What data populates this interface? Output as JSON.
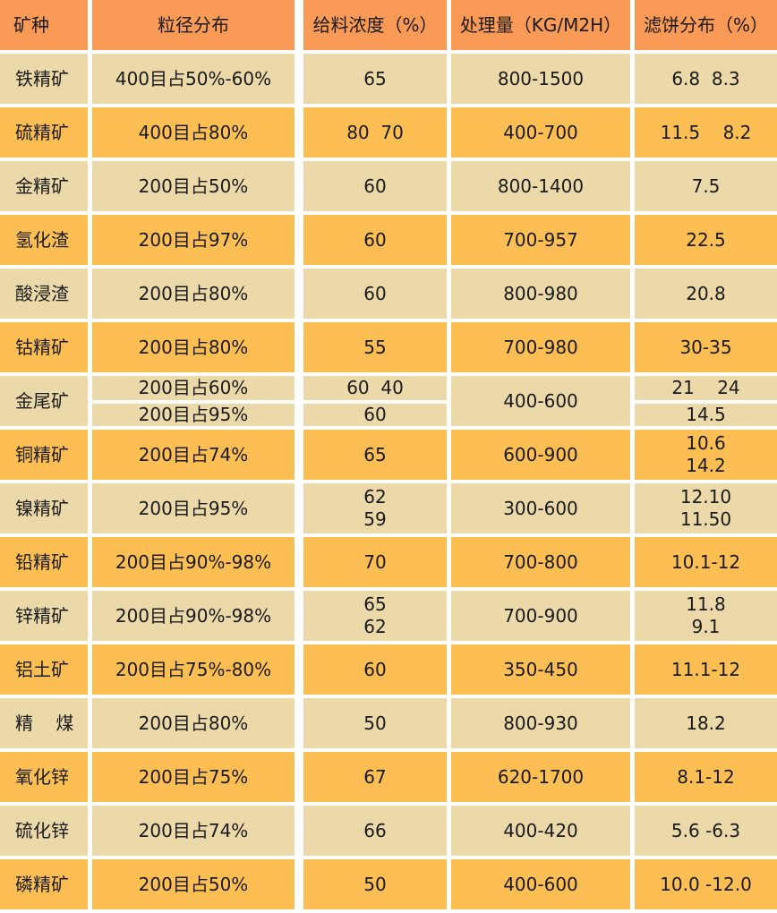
{
  "colors": {
    "header": "#f99a56",
    "row_light": "#ecd9aa",
    "row_dark": "#fdbf54"
  },
  "headers": [
    "矿种",
    "粒径分布",
    "给料浓度（%）",
    "处理量（KG/M2H）",
    "滤饼分布（%）"
  ],
  "rows": [
    {
      "mineral": "铁精矿",
      "size": "400目占50%-60%",
      "conc": "65",
      "capacity": "800-1500",
      "cake": "6.8  8.3"
    },
    {
      "mineral": "硫精矿",
      "size": "400目占80%",
      "conc": "80  70",
      "capacity": "400-700",
      "cake": "11.5    8.2"
    },
    {
      "mineral": "金精矿",
      "size": "200目占50%",
      "conc": "60",
      "capacity": "800-1400",
      "cake": "7.5"
    },
    {
      "mineral": "氢化渣",
      "size": "200目占97%",
      "conc": "60",
      "capacity": "700-957",
      "cake": "22.5"
    },
    {
      "mineral": "酸浸渣",
      "size": "200目占80%",
      "conc": "60",
      "capacity": "800-980",
      "cake": "20.8"
    },
    {
      "mineral": "钴精矿",
      "size": "200目占80%",
      "conc": "55",
      "capacity": "700-980",
      "cake": "30-35"
    },
    {
      "mineral": "金尾矿",
      "size_a": "200目占60%",
      "size_b": "200目占95%",
      "conc_a": "60  40",
      "conc_b": "60",
      "capacity": "400-600",
      "cake_a": "21    24",
      "cake_b": "14.5"
    },
    {
      "mineral": "铜精矿",
      "size": "200目占74%",
      "conc": "65",
      "capacity": "600-900",
      "cake_a": "10.6",
      "cake_b": "14.2"
    },
    {
      "mineral": "镍精矿",
      "size": "200目占95%",
      "conc_a": "62",
      "conc_b": "59",
      "capacity": "300-600",
      "cake_a": "12.10",
      "cake_b": "11.50"
    },
    {
      "mineral": "铅精矿",
      "size": "200目占90%-98%",
      "conc": "70",
      "capacity": "700-800",
      "cake": "10.1-12"
    },
    {
      "mineral": "锌精矿",
      "size": "200目占90%-98%",
      "conc_a": "65",
      "conc_b": "62",
      "capacity": "700-900",
      "cake_a": "11.8",
      "cake_b": "9.1"
    },
    {
      "mineral": "铝土矿",
      "size": "200目占75%-80%",
      "conc": "60",
      "capacity": "350-450",
      "cake": "11.1-12"
    },
    {
      "mineral": "精    煤",
      "size": "200目占80%",
      "conc": "50",
      "capacity": "800-930",
      "cake": "18.2"
    },
    {
      "mineral": "氧化锌",
      "size": "200目占75%",
      "conc": "67",
      "capacity": "620-1700",
      "cake": "8.1-12"
    },
    {
      "mineral": "硫化锌",
      "size": "200目占74%",
      "conc": "66",
      "capacity": "400-420",
      "cake": "5.6 -6.3"
    },
    {
      "mineral": "磷精矿",
      "size": "200目占50%",
      "conc": "50",
      "capacity": "400-600",
      "cake": "10.0 -12.0"
    }
  ]
}
